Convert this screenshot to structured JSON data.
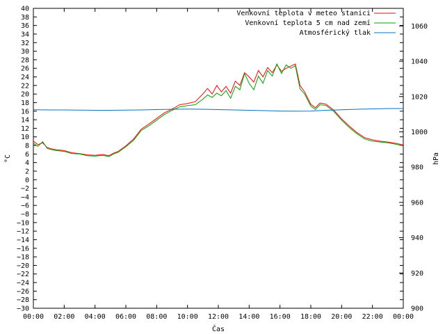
{
  "chart_data": {
    "type": "line",
    "xlabel": "Čas",
    "ylabel": "°C",
    "y2label": "hPa",
    "legend_position": "top-right",
    "x_ticks": [
      "00:00",
      "02:00",
      "04:00",
      "06:00",
      "08:00",
      "10:00",
      "12:00",
      "14:00",
      "16:00",
      "18:00",
      "20:00",
      "22:00",
      "00:00"
    ],
    "xlim": [
      0,
      24
    ],
    "ylim": [
      -30,
      40
    ],
    "y_ticks": [
      -30,
      -28,
      -26,
      -24,
      -22,
      -20,
      -18,
      -16,
      -14,
      -12,
      -10,
      -8,
      -6,
      -4,
      -2,
      0,
      2,
      4,
      6,
      8,
      10,
      12,
      14,
      16,
      18,
      20,
      22,
      24,
      26,
      28,
      30,
      32,
      34,
      36,
      38,
      40
    ],
    "y2lim": [
      900,
      1070
    ],
    "y2_ticks": [
      900,
      920,
      940,
      960,
      980,
      1000,
      1020,
      1040,
      1060
    ],
    "series": [
      {
        "name": "Venkovní teplota v meteo stanici",
        "color": "#ff0000",
        "axis": "y",
        "x": [
          0,
          0.3,
          0.6,
          0.9,
          1.2,
          1.5,
          2,
          2.5,
          3,
          3.5,
          4,
          4.5,
          4.9,
          5.2,
          5.5,
          6,
          6.5,
          7,
          7.5,
          8,
          8.5,
          9,
          9.5,
          10,
          10.5,
          11,
          11.3,
          11.6,
          11.9,
          12.2,
          12.5,
          12.8,
          13.1,
          13.4,
          13.7,
          14,
          14.3,
          14.6,
          14.9,
          15.2,
          15.5,
          15.8,
          16.1,
          16.4,
          16.7,
          17,
          17.3,
          17.6,
          18,
          18.3,
          18.6,
          19,
          19.5,
          20,
          20.5,
          21,
          21.5,
          22,
          22.5,
          23,
          23.5,
          24
        ],
        "values": [
          9,
          8.2,
          8.6,
          7.5,
          7.2,
          7,
          6.8,
          6.3,
          6.1,
          5.8,
          5.7,
          5.9,
          5.6,
          6.2,
          6.6,
          7.9,
          9.5,
          11.8,
          13,
          14.3,
          15.6,
          16.5,
          17.5,
          17.8,
          18.2,
          20,
          21.3,
          20,
          22,
          20.5,
          21.8,
          20.2,
          23,
          22,
          25,
          24,
          22.8,
          25.5,
          24,
          26.2,
          25,
          26.8,
          25.3,
          26,
          26.5,
          27,
          22,
          20.5,
          17.6,
          16.8,
          17.9,
          17.6,
          16.2,
          14.2,
          12.5,
          11,
          9.8,
          9.3,
          9,
          8.8,
          8.5,
          8.1
        ]
      },
      {
        "name": "Venkovní teplota 5 cm nad zemí",
        "color": "#00a000",
        "axis": "y",
        "x": [
          0,
          0.3,
          0.6,
          0.9,
          1.2,
          1.5,
          2,
          2.5,
          3,
          3.5,
          4,
          4.5,
          4.9,
          5.2,
          5.5,
          6,
          6.5,
          7,
          7.5,
          8,
          8.5,
          9,
          9.5,
          10,
          10.5,
          11,
          11.3,
          11.6,
          11.9,
          12.2,
          12.5,
          12.8,
          13.1,
          13.4,
          13.7,
          14,
          14.3,
          14.6,
          14.9,
          15.2,
          15.5,
          15.8,
          16.1,
          16.4,
          16.7,
          17,
          17.3,
          17.6,
          18,
          18.3,
          18.6,
          19,
          19.5,
          20,
          20.5,
          21,
          21.5,
          22,
          22.5,
          23,
          23.5,
          24
        ],
        "values": [
          8.5,
          7.8,
          8.9,
          7.3,
          7,
          6.8,
          6.6,
          6.1,
          6,
          5.6,
          5.5,
          5.7,
          5.4,
          6,
          6.4,
          7.7,
          9.2,
          11.5,
          12.6,
          13.9,
          15.2,
          16.2,
          17,
          17.3,
          17.5,
          18.8,
          19.8,
          19.2,
          20.2,
          19.6,
          20.8,
          19,
          21.8,
          21,
          24.8,
          22.5,
          21,
          24.2,
          22.5,
          25.5,
          24.2,
          27,
          24.8,
          26.8,
          26,
          26.6,
          21.2,
          20,
          17.2,
          16.4,
          17.5,
          17.3,
          15.9,
          13.9,
          12.2,
          10.7,
          9.5,
          9,
          8.8,
          8.6,
          8.3,
          7.9
        ]
      },
      {
        "name": "Atmosférický tlak",
        "color": "#0070c0",
        "axis": "y2",
        "x": [
          0,
          1,
          2,
          3,
          4,
          5,
          6,
          7,
          8,
          9,
          10,
          11,
          12,
          13,
          14,
          15,
          16,
          17,
          18,
          19,
          20,
          21,
          22,
          23,
          24
        ],
        "values": [
          1012.5,
          1012.4,
          1012.4,
          1012.3,
          1012.2,
          1012.2,
          1012.3,
          1012.4,
          1012.6,
          1012.8,
          1012.9,
          1012.8,
          1012.6,
          1012.4,
          1012.2,
          1012,
          1011.8,
          1011.7,
          1011.8,
          1012.2,
          1012.5,
          1012.8,
          1013,
          1013.2,
          1013.2
        ]
      }
    ]
  }
}
